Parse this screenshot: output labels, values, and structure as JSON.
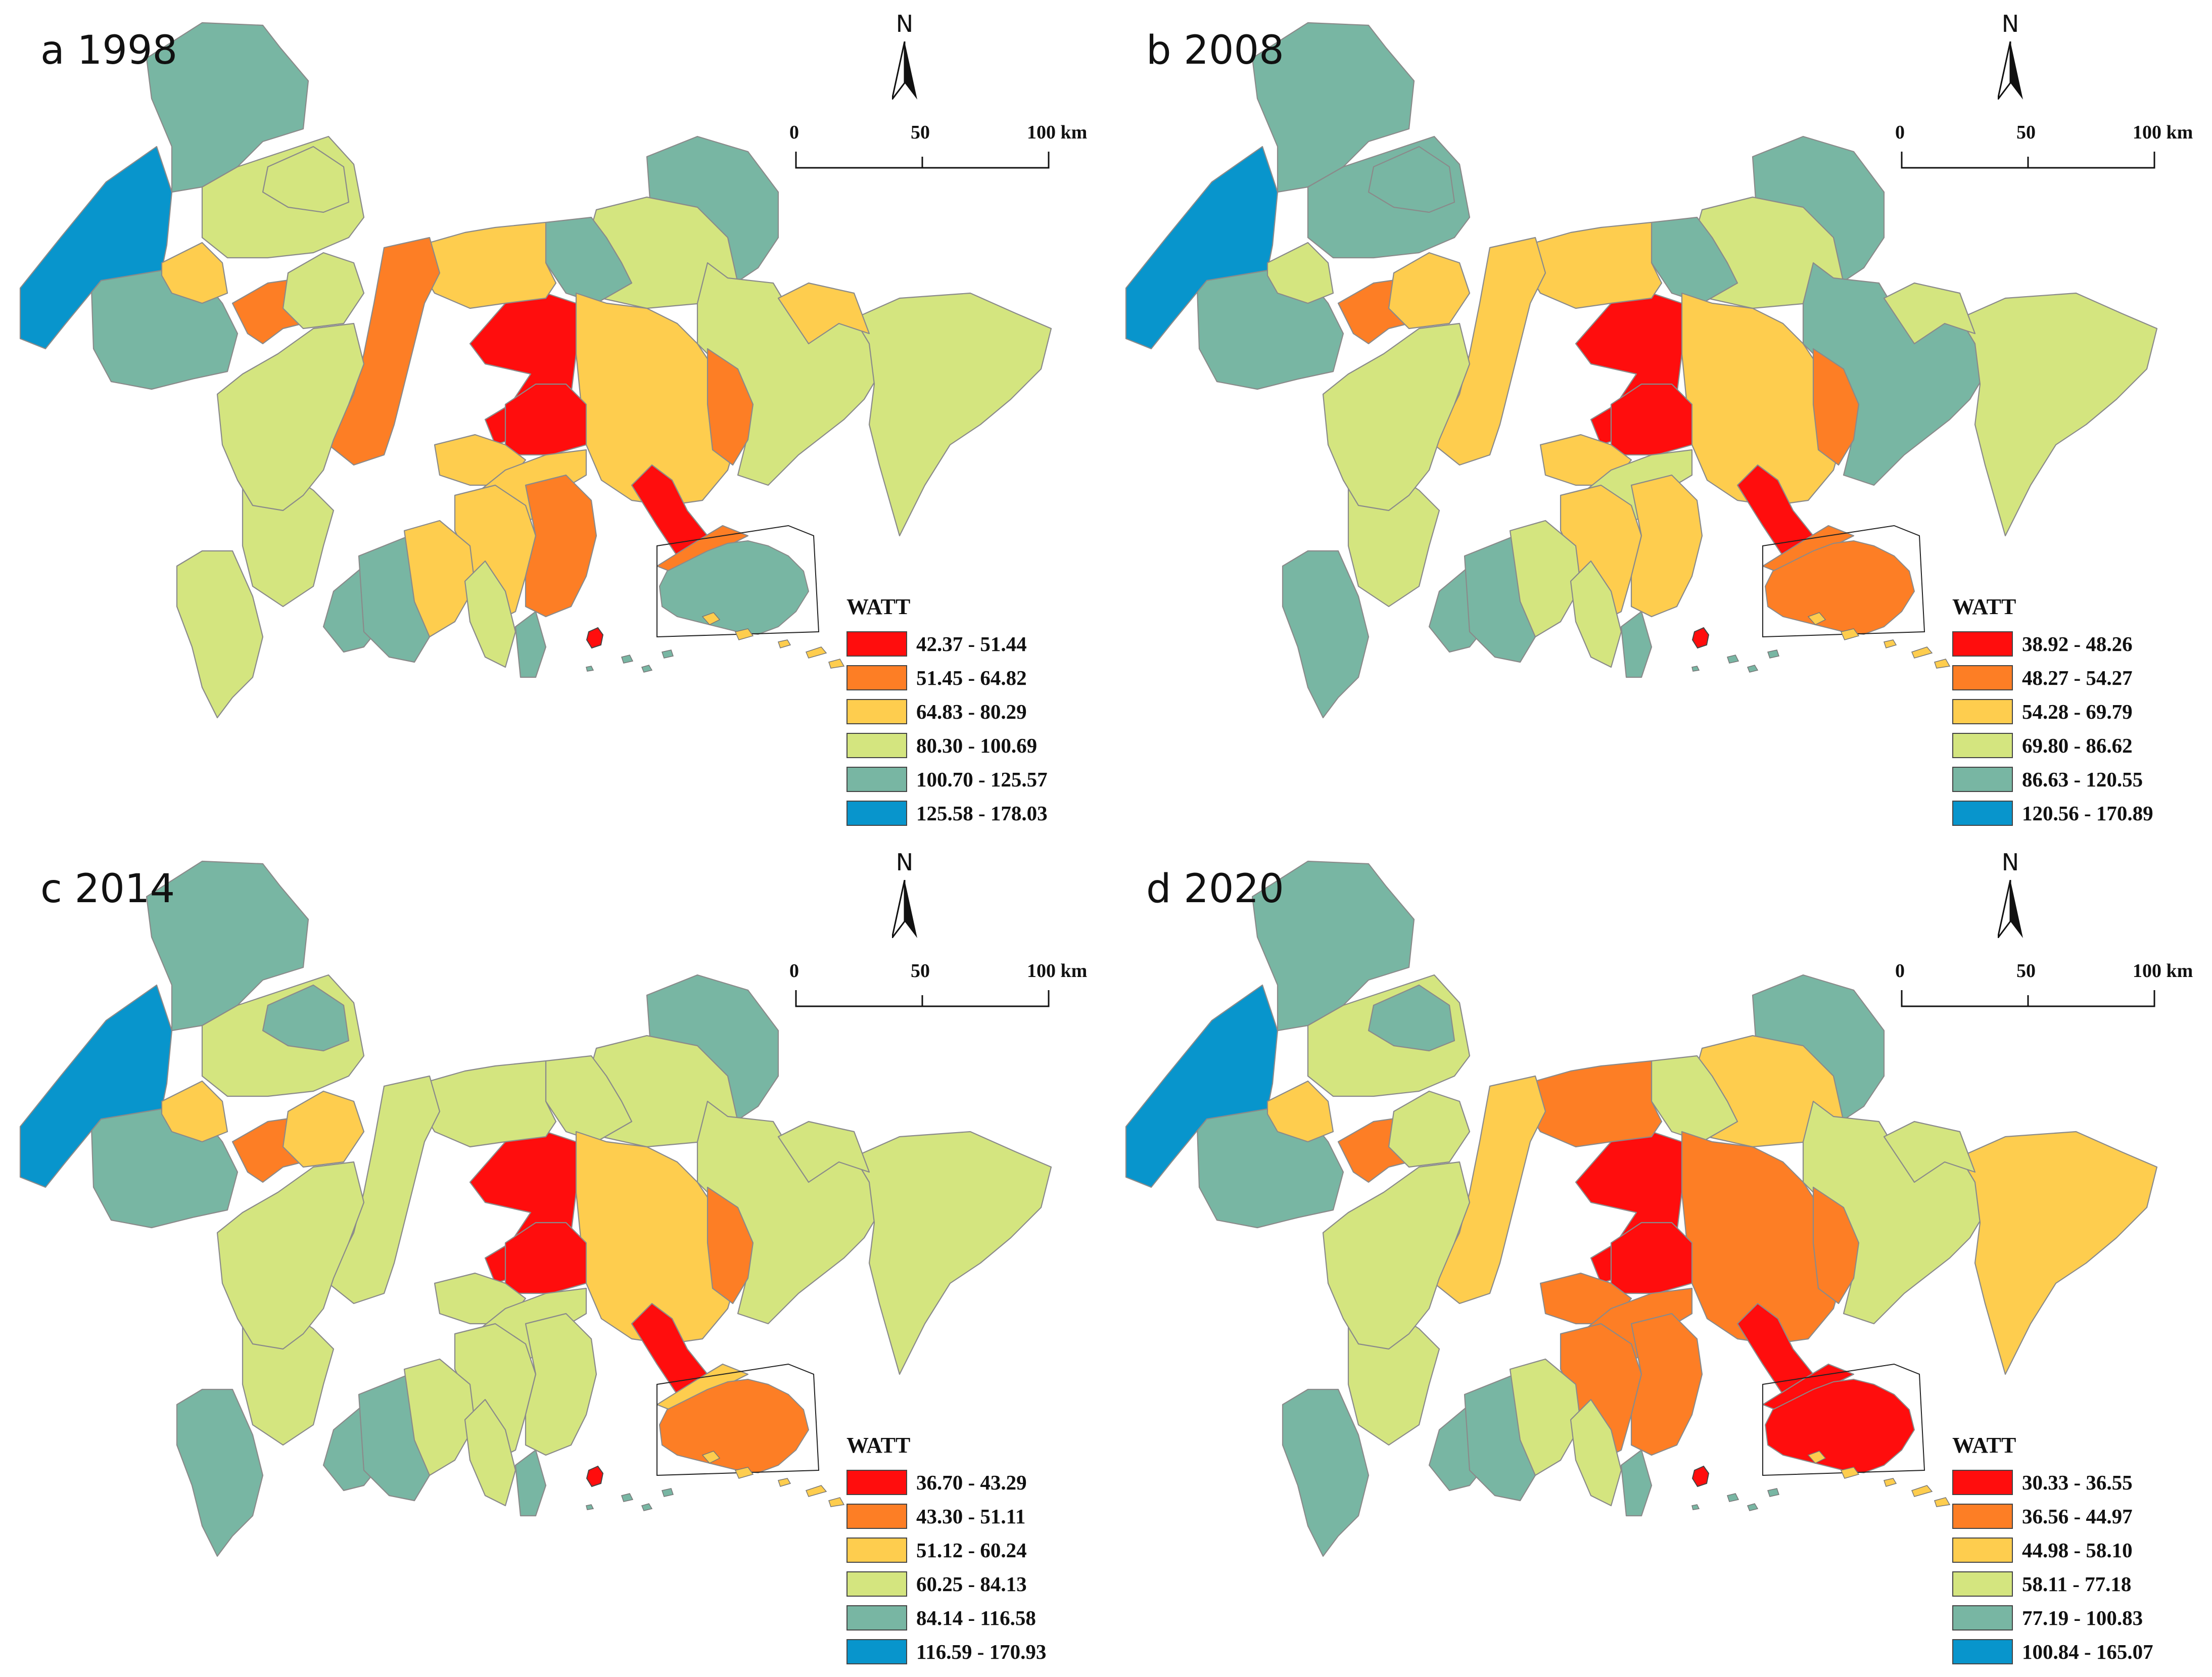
{
  "legend_colors": [
    "#ff0d0d",
    "#fd7e25",
    "#fecd4e",
    "#d4e57f",
    "#78b6a3",
    "#0895cc"
  ],
  "scale": {
    "ticks": [
      "0",
      "50",
      "100 km"
    ]
  },
  "north_label": "N",
  "legend_title": "WATT",
  "panels": [
    {
      "label": "a 1998",
      "classes": [
        "42.37 - 51.44",
        "51.45 - 64.82",
        "64.83 - 80.29",
        "80.30 - 100.69",
        "100.70 - 125.57",
        "125.58 - 178.03"
      ],
      "regions": [
        4,
        4,
        5,
        3,
        3,
        4,
        3,
        4,
        3,
        3,
        2,
        2,
        1,
        0,
        0,
        2,
        2,
        2,
        1,
        1,
        2,
        3,
        3,
        3,
        3,
        2,
        1,
        0,
        1,
        4,
        4,
        2,
        3,
        4
      ]
    },
    {
      "label": "b 2008",
      "classes": [
        "38.92 - 48.26",
        "48.27 - 54.27",
        "54.28 - 69.79",
        "69.80 - 86.62",
        "86.63 - 120.55",
        "120.56 - 170.89"
      ],
      "regions": [
        4,
        4,
        5,
        4,
        4,
        4,
        3,
        4,
        4,
        3,
        3,
        2,
        1,
        0,
        0,
        2,
        2,
        3,
        2,
        1,
        3,
        2,
        3,
        3,
        4,
        2,
        2,
        0,
        1,
        4,
        4,
        3,
        3,
        4
      ]
    },
    {
      "label": "c 2014",
      "classes": [
        "36.70 - 43.29",
        "43.30 - 51.11",
        "51.12 - 60.24",
        "60.25 - 84.13",
        "84.14 - 116.58",
        "116.59 - 170.93"
      ],
      "regions": [
        4,
        4,
        5,
        3,
        4,
        4,
        3,
        3,
        3,
        3,
        3,
        2,
        1,
        0,
        0,
        3,
        3,
        3,
        3,
        1,
        2,
        2,
        3,
        3,
        4,
        3,
        3,
        0,
        2,
        4,
        4,
        3,
        3,
        4
      ]
    },
    {
      "label": "d 2020",
      "classes": [
        "30.33 - 36.55",
        "36.56 - 44.97",
        "44.98 - 58.10",
        "58.11 - 77.18",
        "77.19 - 100.83",
        "100.84 - 165.07"
      ],
      "regions": [
        4,
        4,
        5,
        3,
        4,
        4,
        2,
        3,
        3,
        2,
        3,
        1,
        1,
        0,
        0,
        1,
        1,
        1,
        2,
        1,
        2,
        3,
        3,
        3,
        4,
        1,
        1,
        0,
        0,
        4,
        4,
        3,
        3,
        4
      ]
    }
  ]
}
